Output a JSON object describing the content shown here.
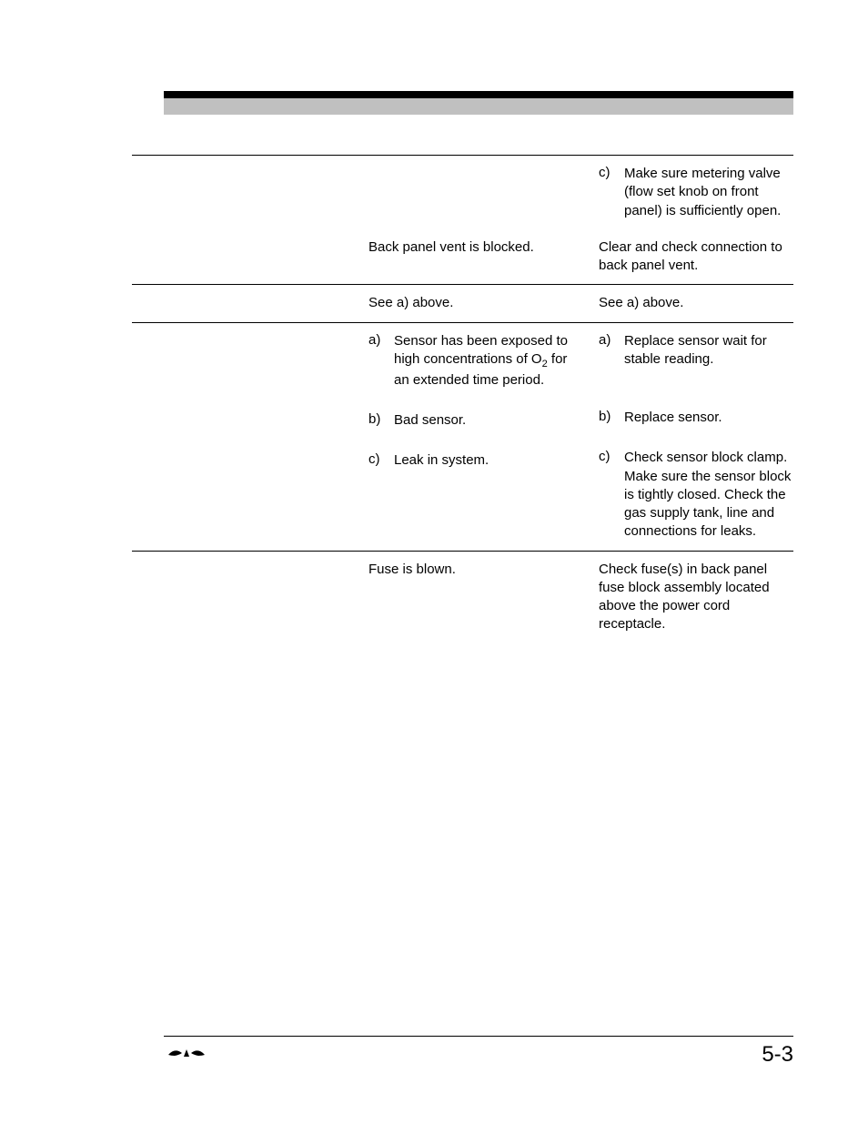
{
  "rows": [
    {
      "col2_items": [],
      "col3_items": [
        {
          "label": "c)",
          "text": "Make sure metering valve (flow set knob on front panel) is sufficiently open."
        }
      ],
      "top_rule": true,
      "col2_plain": null,
      "col3_plain": null
    },
    {
      "col2_plain": "Back panel vent is blocked.",
      "col3_plain": "Clear and check connection to back panel vent.",
      "col2_items": [],
      "col3_items": []
    },
    {
      "col2_plain": "See a) above.",
      "col3_plain": "See a) above.",
      "col2_items": [],
      "col3_items": [],
      "top_rule": true
    },
    {
      "col2_items": [
        {
          "label": "a)",
          "text": "Sensor has been exposed to high concentrations of O",
          "sub": "2",
          "text_after": " for an extended time period."
        },
        {
          "label": "b)",
          "text": "Bad sensor."
        },
        {
          "label": "c)",
          "text": "Leak in system."
        }
      ],
      "col3_items": [
        {
          "label": "a)",
          "text": "Replace sensor wait for stable reading.",
          "extra_bottom": true
        },
        {
          "label": "b)",
          "text": "Replace sensor."
        },
        {
          "label": "c)",
          "text": "Check sensor block clamp. Make sure the sensor block is tightly closed. Check the gas supply tank, line and connections for leaks."
        }
      ],
      "top_rule": true,
      "col2_plain": null,
      "col3_plain": null
    },
    {
      "col2_plain": "Fuse is blown.",
      "col3_plain": "Check fuse(s) in back panel fuse block assembly located above the power cord receptacle.",
      "col2_items": [],
      "col3_items": [],
      "top_rule": true
    }
  ],
  "page_number": "5-3"
}
